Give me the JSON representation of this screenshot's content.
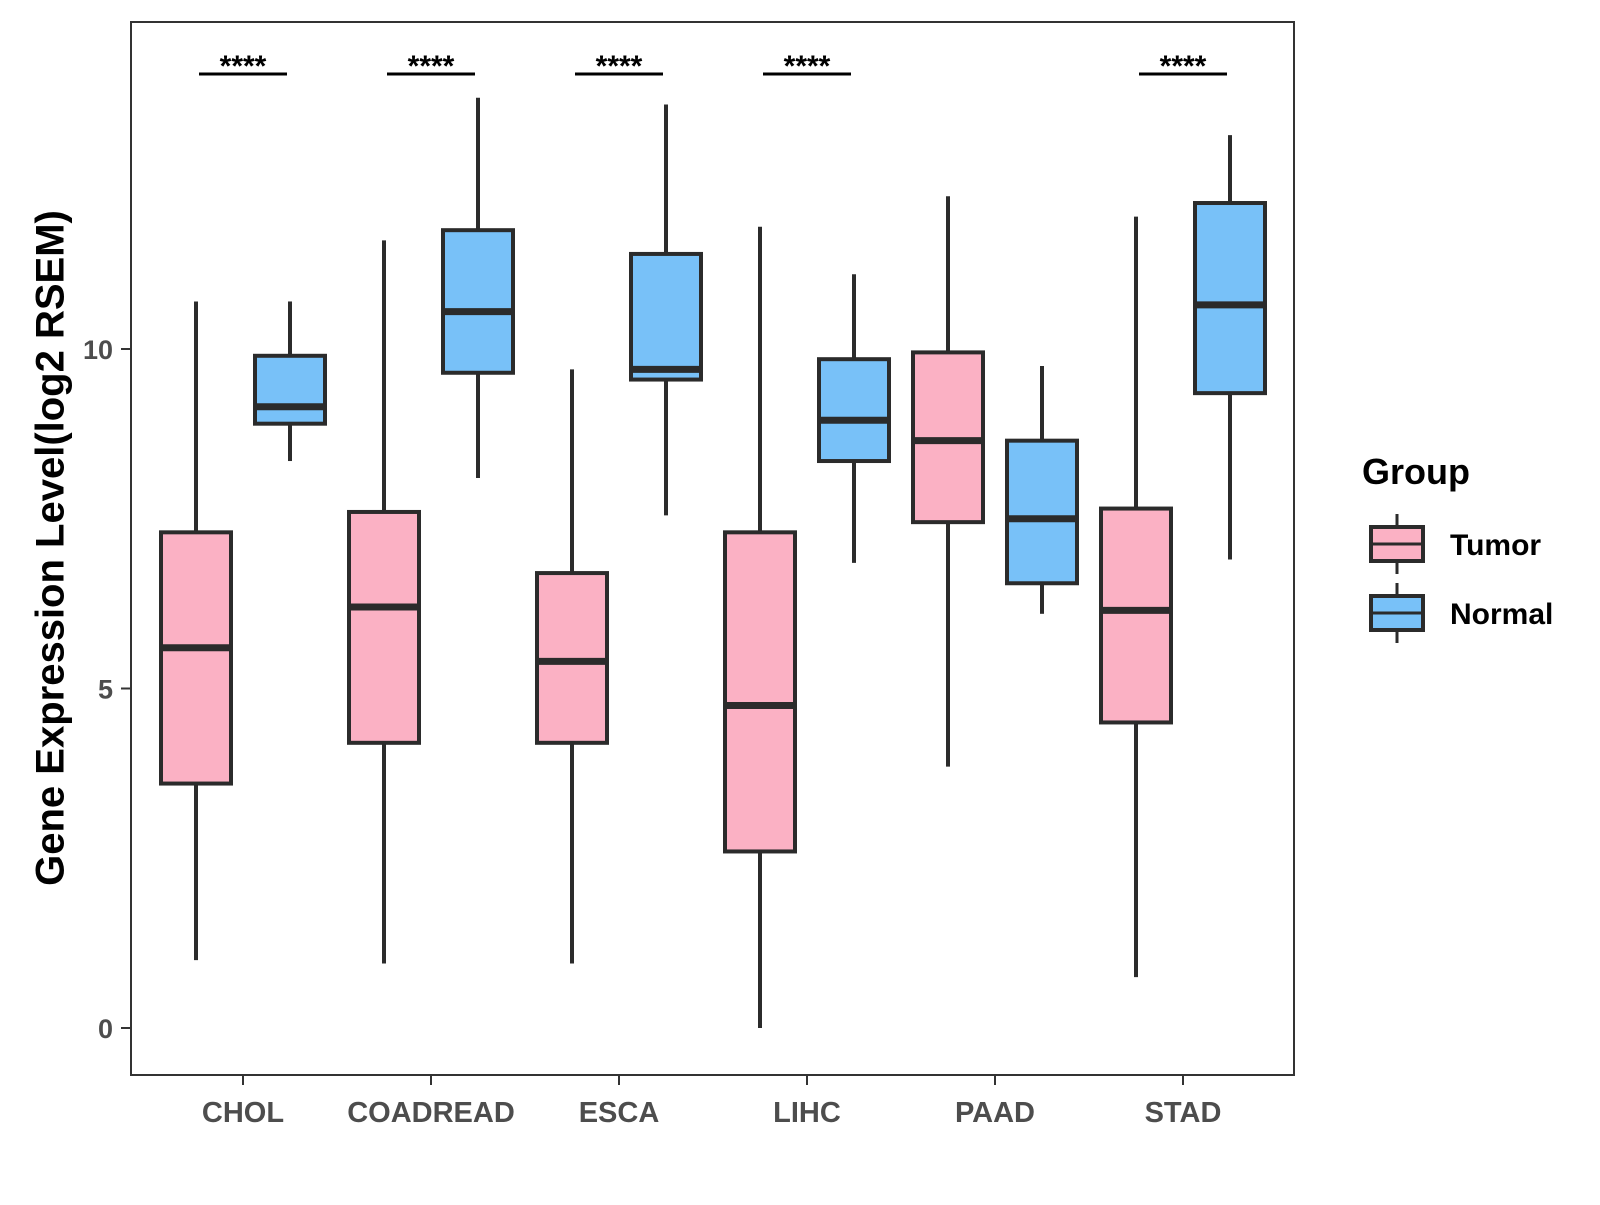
{
  "chart_data": {
    "type": "box",
    "title": "",
    "xlabel": "",
    "ylabel": "Gene Expression Level(log2 RSEM)",
    "ylim": [
      -0.7,
      14.8
    ],
    "yticks": [
      0,
      5,
      10
    ],
    "grid": false,
    "categories": [
      "CHOL",
      "COADREAD",
      "ESCA",
      "LIHC",
      "PAAD",
      "STAD"
    ],
    "legend": {
      "title": "Group",
      "position": "right",
      "entries": [
        {
          "name": "Tumor",
          "color": "#FBB1C4"
        },
        {
          "name": "Normal",
          "color": "#78C1F8"
        }
      ]
    },
    "series": [
      {
        "name": "Tumor",
        "color": "#FBB1C4",
        "boxes": [
          {
            "category": "CHOL",
            "min": 1.0,
            "q1": 3.6,
            "median": 5.6,
            "q3": 7.3,
            "max": 10.7
          },
          {
            "category": "COADREAD",
            "min": 0.95,
            "q1": 4.2,
            "median": 6.2,
            "q3": 7.6,
            "max": 11.6
          },
          {
            "category": "ESCA",
            "min": 0.95,
            "q1": 4.2,
            "median": 5.4,
            "q3": 6.7,
            "max": 9.7
          },
          {
            "category": "LIHC",
            "min": 0.0,
            "q1": 2.6,
            "median": 4.75,
            "q3": 7.3,
            "max": 11.8
          },
          {
            "category": "PAAD",
            "min": 3.85,
            "q1": 7.45,
            "median": 8.65,
            "q3": 9.95,
            "max": 12.25
          },
          {
            "category": "STAD",
            "min": 0.75,
            "q1": 4.5,
            "median": 6.15,
            "q3": 7.65,
            "max": 11.95
          }
        ]
      },
      {
        "name": "Normal",
        "color": "#78C1F8",
        "boxes": [
          {
            "category": "CHOL",
            "min": 8.35,
            "q1": 8.9,
            "median": 9.15,
            "q3": 9.9,
            "max": 10.7
          },
          {
            "category": "COADREAD",
            "min": 8.1,
            "q1": 9.65,
            "median": 10.55,
            "q3": 11.75,
            "max": 13.7
          },
          {
            "category": "ESCA",
            "min": 7.55,
            "q1": 9.55,
            "median": 9.7,
            "q3": 11.4,
            "max": 13.6
          },
          {
            "category": "LIHC",
            "min": 6.85,
            "q1": 8.35,
            "median": 8.95,
            "q3": 9.85,
            "max": 11.1
          },
          {
            "category": "PAAD",
            "min": 6.1,
            "q1": 6.55,
            "median": 7.5,
            "q3": 8.65,
            "max": 9.75
          },
          {
            "category": "STAD",
            "min": 6.9,
            "q1": 9.35,
            "median": 10.65,
            "q3": 12.15,
            "max": 13.15
          }
        ]
      }
    ],
    "annotations": [
      {
        "category": "CHOL",
        "text": "****"
      },
      {
        "category": "COADREAD",
        "text": "****"
      },
      {
        "category": "ESCA",
        "text": "****"
      },
      {
        "category": "LIHC",
        "text": "****"
      },
      {
        "category": "PAAD",
        "text": ""
      },
      {
        "category": "STAD",
        "text": "****"
      }
    ]
  }
}
